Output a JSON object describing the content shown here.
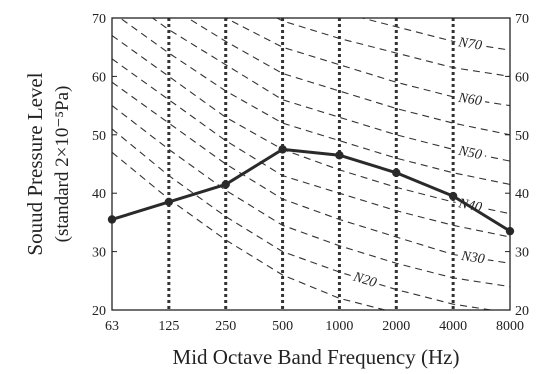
{
  "chart_data": {
    "type": "line",
    "categories": [
      "63",
      "125",
      "250",
      "500",
      "1000",
      "2000",
      "4000",
      "8000"
    ],
    "series": [
      {
        "values": [
          35.5,
          38.5,
          41.5,
          47.5,
          46.5,
          43.5,
          39.5,
          33.5
        ]
      }
    ],
    "xlabel": "Mid Octave Band Frequency (Hz)",
    "ylabel_line1": "Souud Pressure Level",
    "ylabel_line2": "(standard 2×10⁻⁵Pa)",
    "ylim": [
      20,
      70
    ],
    "yticks": [
      20,
      30,
      40,
      50,
      60,
      70
    ],
    "grid": "vertical dashed at each band",
    "nc_curves": [
      {
        "label": "N20",
        "values": [
          51,
          43,
          36,
          30,
          26.5,
          23.5,
          21,
          19.5
        ]
      },
      {
        "label": "N30",
        "values": [
          59,
          52,
          45,
          39,
          35.5,
          32.5,
          29.5,
          28
        ]
      },
      {
        "label": "N40",
        "values": [
          67,
          60,
          53,
          47.5,
          44,
          41,
          38.5,
          36.5
        ]
      },
      {
        "label": "N50",
        "values": [
          75,
          68,
          62,
          56,
          53,
          50,
          47.5,
          45.5
        ]
      },
      {
        "label": "N60",
        "values": [
          83,
          76,
          70,
          65,
          62,
          59,
          56.5,
          55
        ]
      },
      {
        "label": "N70",
        "values": [
          91,
          85,
          79,
          74,
          71,
          68.5,
          66,
          64.5
        ]
      },
      {
        "values": [
          47,
          39,
          32,
          26,
          22,
          19.5,
          17,
          16
        ]
      },
      {
        "values": [
          55,
          47.5,
          40.5,
          34.5,
          31,
          28,
          25.5,
          24
        ]
      },
      {
        "values": [
          63,
          56,
          49,
          43,
          40,
          37,
          34.5,
          32.5
        ]
      },
      {
        "values": [
          71,
          64,
          57.5,
          52,
          49,
          46,
          43.5,
          41.5
        ]
      },
      {
        "values": [
          79,
          72,
          66,
          60.5,
          57.5,
          54.5,
          52,
          50
        ]
      },
      {
        "values": [
          87,
          80.5,
          74.5,
          69.5,
          66.5,
          64,
          61.5,
          60
        ]
      }
    ]
  }
}
